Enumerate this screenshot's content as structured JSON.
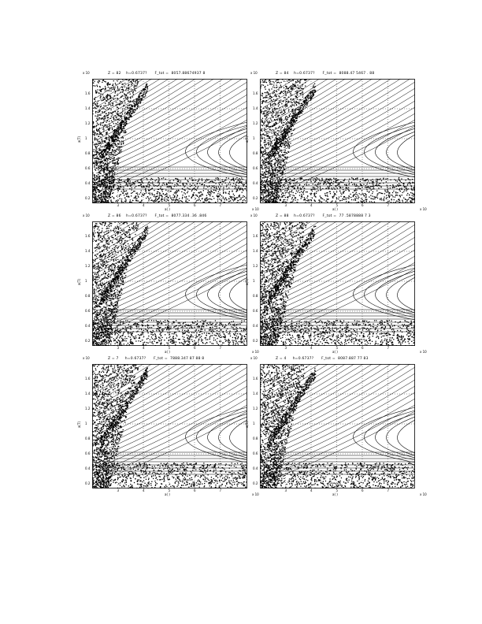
{
  "figure": {
    "panels": [
      {
        "title": "Z = 82    h=0.6737?      F_tot =  8057.88674937 8"
      },
      {
        "title": "Z = 84    h=0.6737?      F_tot =  8088.47 5467 . 88"
      },
      {
        "title": "Z = 86    h=0.6737?      F_tot =  8077.334 .36 .846"
      },
      {
        "title": "Z = 88    h=0.6737?      F_tot =  77 .5878888 7 3"
      },
      {
        "title": "Z = 7     h=0.6737?      F_tot =  7888.347 87 88 8"
      },
      {
        "title": "Z = 4     h=0.6737?      F_tot =  8087.887 77 83"
      }
    ],
    "xlabel": "a( )",
    "ylabel": "a(T)",
    "x_corner": "x 10",
    "y_corner": "x 10",
    "x_ticks": [
      "2",
      "3",
      "4",
      "5",
      "6",
      "7"
    ],
    "y_ticks": [
      "0.2",
      "0.4",
      "0.6",
      "0.8",
      "1",
      "1.2",
      "1.4",
      "1.6"
    ]
  }
}
